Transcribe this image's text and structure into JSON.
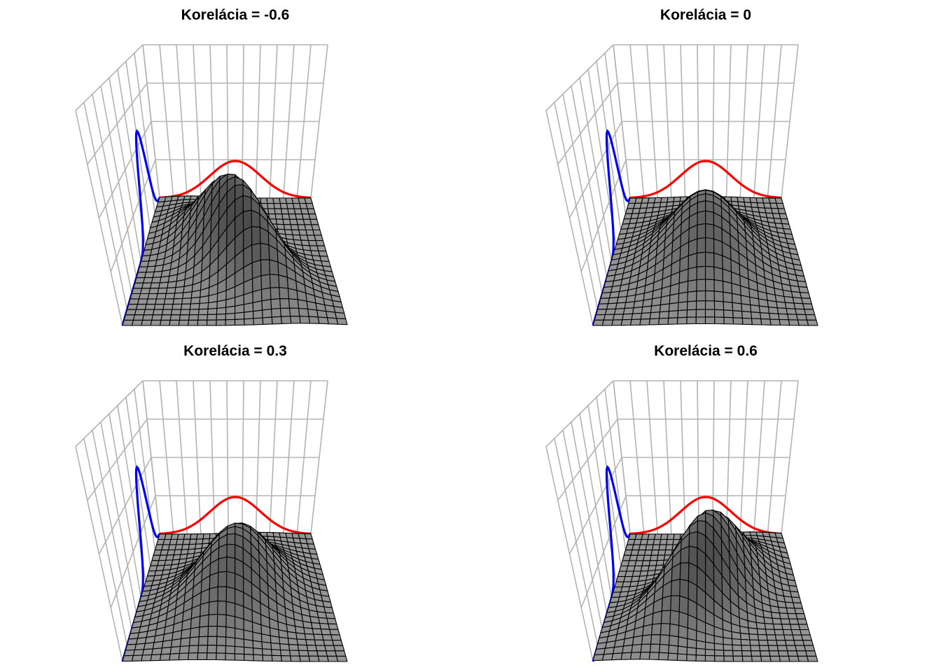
{
  "chart_data": [
    {
      "type": "surface",
      "title": "Korelácia = -0.6",
      "correlation": -0.6,
      "marginal_x_color": "#ff0000",
      "marginal_y_color": "#0000ff",
      "wall_grid_color": "#b3b3b3",
      "surface_color": "#808080"
    },
    {
      "type": "surface",
      "title": "Korelácia = 0",
      "correlation": 0,
      "marginal_x_color": "#ff0000",
      "marginal_y_color": "#0000ff",
      "wall_grid_color": "#b3b3b3",
      "surface_color": "#808080"
    },
    {
      "type": "surface",
      "title": "Korelácia = 0.3",
      "correlation": 0.3,
      "marginal_x_color": "#ff0000",
      "marginal_y_color": "#0000ff",
      "wall_grid_color": "#b3b3b3",
      "surface_color": "#808080"
    },
    {
      "type": "surface",
      "title": "Korelácia = 0.6",
      "correlation": 0.6,
      "marginal_x_color": "#ff0000",
      "marginal_y_color": "#0000ff",
      "wall_grid_color": "#b3b3b3",
      "surface_color": "#808080"
    }
  ]
}
